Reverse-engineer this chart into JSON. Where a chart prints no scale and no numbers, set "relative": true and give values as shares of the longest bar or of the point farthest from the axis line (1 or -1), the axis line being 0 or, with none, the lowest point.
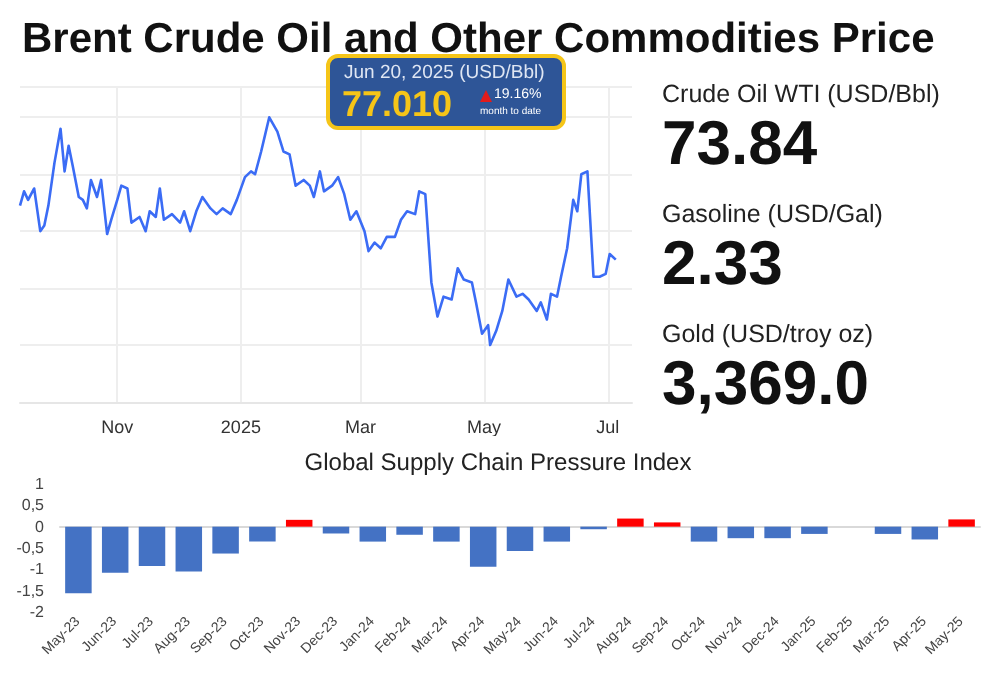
{
  "chart_data": [
    {
      "type": "line",
      "title": "Brent Crude Oil and Other Commodities Price",
      "relative": true,
      "grid": true,
      "marker": "none",
      "line_style": "solid",
      "annotations": [
        "Jun 20, 2025 (USD/Bbl)",
        "77.010",
        "19.16%",
        "month to date"
      ],
      "xlim": [
        "2024-09-14",
        "2025-07-13"
      ],
      "xticks": [
        {
          "value": "2024-11-01",
          "label": "Nov"
        },
        {
          "value": "2025-01-01",
          "label": "2025"
        },
        {
          "value": "2025-03-01",
          "label": "Mar"
        },
        {
          "value": "2025-05-01",
          "label": "May"
        },
        {
          "value": "2025-07-01",
          "label": "Jul"
        }
      ],
      "series": [
        {
          "color": "#3b6cf5",
          "x": [
            "2024-09-14",
            "2024-09-16",
            "2024-09-18",
            "2024-09-21",
            "2024-09-24",
            "2024-09-26",
            "2024-09-28",
            "2024-10-01",
            "2024-10-04",
            "2024-10-06",
            "2024-10-08",
            "2024-10-10",
            "2024-10-13",
            "2024-10-15",
            "2024-10-17",
            "2024-10-19",
            "2024-10-22",
            "2024-10-24",
            "2024-10-27",
            "2024-10-29",
            "2024-11-01",
            "2024-11-03",
            "2024-11-06",
            "2024-11-08",
            "2024-11-12",
            "2024-11-15",
            "2024-11-17",
            "2024-11-20",
            "2024-11-22",
            "2024-11-24",
            "2024-11-28",
            "2024-12-02",
            "2024-12-04",
            "2024-12-07",
            "2024-12-10",
            "2024-12-13",
            "2024-12-17",
            "2024-12-20",
            "2024-12-23",
            "2024-12-27",
            "2024-12-30",
            "2025-01-03",
            "2025-01-06",
            "2025-01-08",
            "2025-01-11",
            "2025-01-13",
            "2025-01-15",
            "2025-01-19",
            "2025-01-22",
            "2025-01-25",
            "2025-01-28",
            "2025-02-01",
            "2025-02-04",
            "2025-02-06",
            "2025-02-09",
            "2025-02-11",
            "2025-02-15",
            "2025-02-18",
            "2025-02-21",
            "2025-02-24",
            "2025-02-27",
            "2025-03-03",
            "2025-03-05",
            "2025-03-08",
            "2025-03-11",
            "2025-03-14",
            "2025-03-18",
            "2025-03-21",
            "2025-03-24",
            "2025-03-28",
            "2025-03-30",
            "2025-04-02",
            "2025-04-05",
            "2025-04-08",
            "2025-04-11",
            "2025-04-15",
            "2025-04-18",
            "2025-04-21",
            "2025-04-25",
            "2025-04-27",
            "2025-04-30",
            "2025-05-03",
            "2025-05-04",
            "2025-05-07",
            "2025-05-10",
            "2025-05-13",
            "2025-05-17",
            "2025-05-20",
            "2025-05-23",
            "2025-05-27",
            "2025-05-29",
            "2025-06-01",
            "2025-06-03",
            "2025-06-06",
            "2025-06-08",
            "2025-06-11",
            "2025-06-14",
            "2025-06-16",
            "2025-06-18",
            "2025-06-21",
            "2025-06-24",
            "2025-06-27",
            "2025-06-30",
            "2025-07-02",
            "2025-07-05"
          ],
          "values": [
            0.69,
            0.74,
            0.71,
            0.75,
            0.6,
            0.62,
            0.69,
            0.84,
            0.96,
            0.81,
            0.9,
            0.83,
            0.72,
            0.71,
            0.68,
            0.78,
            0.72,
            0.78,
            0.59,
            0.64,
            0.71,
            0.76,
            0.75,
            0.63,
            0.65,
            0.6,
            0.67,
            0.65,
            0.75,
            0.64,
            0.66,
            0.63,
            0.67,
            0.6,
            0.67,
            0.72,
            0.68,
            0.66,
            0.68,
            0.66,
            0.71,
            0.79,
            0.81,
            0.8,
            0.88,
            0.94,
            1,
            0.95,
            0.88,
            0.87,
            0.76,
            0.78,
            0.76,
            0.72,
            0.81,
            0.74,
            0.76,
            0.79,
            0.73,
            0.64,
            0.67,
            0.6,
            0.53,
            0.56,
            0.54,
            0.58,
            0.58,
            0.64,
            0.67,
            0.66,
            0.74,
            0.73,
            0.42,
            0.3,
            0.37,
            0.36,
            0.47,
            0.43,
            0.42,
            0.35,
            0.24,
            0.27,
            0.2,
            0.25,
            0.32,
            0.43,
            0.37,
            0.38,
            0.36,
            0.32,
            0.35,
            0.29,
            0.38,
            0.37,
            0.44,
            0.54,
            0.71,
            0.67,
            0.8,
            0.81,
            0.44,
            0.44,
            0.45,
            0.52,
            0.5
          ]
        }
      ]
    },
    {
      "type": "other",
      "annotations": [
        "Crude Oil WTI (USD/Bbl)",
        "73.84",
        "Gasoline (USD/Gal)",
        "2.33",
        "Gold (USD/troy oz)",
        "3,369.0"
      ]
    },
    {
      "type": "bar",
      "title": "Global Supply Chain Pressure Index",
      "categories": [
        "May-23",
        "Jun-23",
        "Jul-23",
        "Aug-23",
        "Sep-23",
        "Oct-23",
        "Nov-23",
        "Dec-23",
        "Jan-24",
        "Feb-24",
        "Mar-24",
        "Apr-24",
        "May-24",
        "Jun-24",
        "Jul-24",
        "Aug-24",
        "Sep-24",
        "Oct-24",
        "Nov-24",
        "Dec-24",
        "Jan-25",
        "Feb-25",
        "Mar-25",
        "Apr-25",
        "May-25"
      ],
      "values": [
        -1.56,
        -1.08,
        -0.92,
        -1.05,
        -0.63,
        -0.35,
        0.16,
        -0.16,
        -0.35,
        -0.19,
        -0.35,
        -0.94,
        -0.57,
        -0.35,
        -0.06,
        0.19,
        0.1,
        -0.35,
        -0.27,
        -0.27,
        -0.17,
        0,
        -0.17,
        -0.3,
        0.17
      ],
      "colors": [
        "#4472c4",
        "#4472c4",
        "#4472c4",
        "#4472c4",
        "#4472c4",
        "#4472c4",
        "#ff0000",
        "#4472c4",
        "#4472c4",
        "#4472c4",
        "#4472c4",
        "#4472c4",
        "#4472c4",
        "#4472c4",
        "#4472c4",
        "#ff0000",
        "#ff0000",
        "#4472c4",
        "#4472c4",
        "#4472c4",
        "#4472c4",
        "#4472c4",
        "#4472c4",
        "#4472c4",
        "#ff0000"
      ],
      "ylim": [
        -2,
        1
      ],
      "yticks": [
        -2,
        {
          "value": -1.5,
          "label": "-1,5"
        },
        -1,
        {
          "value": -0.5,
          "label": "-0,5"
        },
        0,
        {
          "value": 0.5,
          "label": "0,5"
        },
        1
      ]
    }
  ]
}
